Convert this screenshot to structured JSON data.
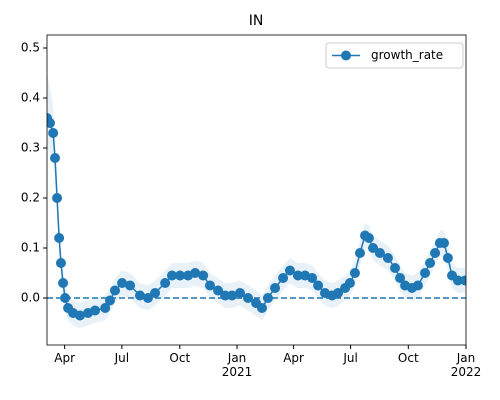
{
  "chart_data": {
    "type": "line",
    "title": "IN",
    "x": [
      2020.17,
      2020.183,
      2020.197,
      2020.205,
      2020.214,
      2020.223,
      2020.231,
      2020.24,
      2020.249,
      2020.262,
      2020.284,
      2020.314,
      2020.349,
      2020.38,
      2020.424,
      2020.445,
      2020.467,
      2020.498,
      2020.533,
      2020.576,
      2020.611,
      2020.642,
      2020.686,
      2020.716,
      2020.751,
      2020.786,
      2020.817,
      2020.852,
      2020.882,
      2020.917,
      2020.948,
      2020.978,
      2021.013,
      2021.048,
      2021.083,
      2021.109,
      2021.135,
      2021.166,
      2021.201,
      2021.231,
      2021.266,
      2021.297,
      2021.328,
      2021.354,
      2021.384,
      2021.415,
      2021.441,
      2021.472,
      2021.493,
      2021.515,
      2021.537,
      2021.559,
      2021.576,
      2021.594,
      2021.624,
      2021.659,
      2021.69,
      2021.712,
      2021.734,
      2021.764,
      2021.79,
      2021.821,
      2021.843,
      2021.865,
      2021.886,
      2021.904,
      2021.921,
      2021.939,
      2021.965,
      2021.996
    ],
    "series": [
      {
        "name": "growth_rate",
        "color": "#1f77b4",
        "values": [
          0.36,
          0.35,
          0.33,
          0.28,
          0.2,
          0.12,
          0.07,
          0.03,
          0.0,
          -0.02,
          -0.03,
          -0.035,
          -0.03,
          -0.025,
          -0.02,
          -0.005,
          0.015,
          0.03,
          0.025,
          0.005,
          0.0,
          0.01,
          0.03,
          0.045,
          0.045,
          0.045,
          0.05,
          0.045,
          0.025,
          0.015,
          0.005,
          0.005,
          0.01,
          0.0,
          -0.01,
          -0.02,
          0.0,
          0.02,
          0.04,
          0.055,
          0.045,
          0.045,
          0.04,
          0.025,
          0.01,
          0.005,
          0.01,
          0.02,
          0.03,
          0.05,
          0.09,
          0.125,
          0.12,
          0.1,
          0.09,
          0.08,
          0.06,
          0.04,
          0.025,
          0.02,
          0.025,
          0.05,
          0.07,
          0.09,
          0.11,
          0.11,
          0.08,
          0.045,
          0.035,
          0.035
        ],
        "lower": [
          0.3,
          0.29,
          0.28,
          0.24,
          0.16,
          0.09,
          0.045,
          0.005,
          -0.025,
          -0.045,
          -0.055,
          -0.06,
          -0.055,
          -0.05,
          -0.045,
          -0.03,
          -0.01,
          0.005,
          0,
          -0.02,
          -0.025,
          -0.015,
          0.005,
          0.02,
          0.02,
          0.02,
          0.025,
          0.02,
          0,
          -0.01,
          -0.02,
          -0.02,
          -0.015,
          -0.025,
          -0.035,
          -0.045,
          -0.025,
          -0.005,
          0.015,
          0.03,
          0.02,
          0.02,
          0.015,
          0,
          -0.015,
          -0.02,
          -0.015,
          -0.005,
          0.005,
          0.025,
          0.065,
          0.1,
          0.095,
          0.075,
          0.065,
          0.055,
          0.035,
          0.015,
          0,
          -0.005,
          0,
          0.025,
          0.045,
          0.065,
          0.085,
          0.085,
          0.055,
          0.02,
          0.01,
          0.01
        ],
        "upper": [
          0.45,
          0.42,
          0.38,
          0.32,
          0.24,
          0.15,
          0.095,
          0.055,
          0.025,
          0.005,
          -0.005,
          -0.01,
          -0.005,
          0,
          0.005,
          0.02,
          0.04,
          0.055,
          0.05,
          0.03,
          0.025,
          0.035,
          0.055,
          0.07,
          0.07,
          0.07,
          0.075,
          0.07,
          0.05,
          0.04,
          0.03,
          0.03,
          0.035,
          0.025,
          0.015,
          0.005,
          0.025,
          0.045,
          0.065,
          0.08,
          0.07,
          0.07,
          0.065,
          0.05,
          0.035,
          0.03,
          0.035,
          0.045,
          0.055,
          0.075,
          0.115,
          0.15,
          0.145,
          0.125,
          0.115,
          0.105,
          0.085,
          0.065,
          0.05,
          0.045,
          0.05,
          0.075,
          0.095,
          0.115,
          0.135,
          0.135,
          0.105,
          0.07,
          0.06,
          0.06
        ]
      }
    ],
    "hline": 0,
    "xlim": [
      2020.17,
      2022.0
    ],
    "xticks": [
      {
        "value": 2020.247,
        "label": "Apr"
      },
      {
        "value": 2020.497,
        "label": "Jul"
      },
      {
        "value": 2020.75,
        "label": "Oct"
      },
      {
        "value": 2021.0,
        "label": "Jan\n2021"
      },
      {
        "value": 2021.247,
        "label": "Apr"
      },
      {
        "value": 2021.496,
        "label": "Jul"
      },
      {
        "value": 2021.748,
        "label": "Oct"
      },
      {
        "value": 2022.0,
        "label": "Jan\n2022"
      }
    ],
    "ylim": [
      -0.094,
      0.526
    ],
    "yticks": [
      {
        "value": 0,
        "label": "0.0"
      },
      0.1,
      0.2,
      0.3,
      0.4,
      0.5
    ],
    "legend": "upper right"
  }
}
